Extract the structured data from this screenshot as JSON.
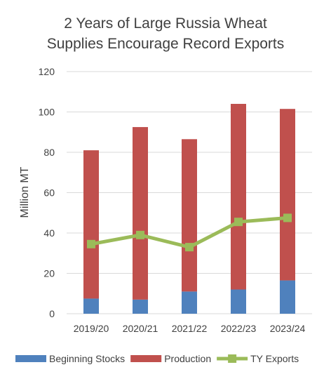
{
  "chart_data": {
    "type": "bar",
    "title_lines": [
      "2 Years of Large Russia Wheat",
      "Supplies Encourage Record Exports"
    ],
    "ylabel": "Million MT",
    "xlabel": "",
    "ylim": [
      0,
      120
    ],
    "yticks": [
      0,
      20,
      40,
      60,
      80,
      100,
      120
    ],
    "grid": true,
    "stacked": true,
    "legend_position": "bottom",
    "categories": [
      "2019/20",
      "2020/21",
      "2021/22",
      "2022/23",
      "2023/24"
    ],
    "series": [
      {
        "name": "Beginning Stocks",
        "type": "bar",
        "color": "#4f81bd",
        "values": [
          7.5,
          7.0,
          11.0,
          12.0,
          16.5
        ]
      },
      {
        "name": "Production",
        "type": "bar",
        "color": "#c0504d",
        "values": [
          73.5,
          85.5,
          75.5,
          92.0,
          85.0
        ]
      },
      {
        "name": "TY Exports",
        "type": "line",
        "color": "#9bbb59",
        "values": [
          34.5,
          39.0,
          33.0,
          45.5,
          47.5
        ]
      }
    ]
  }
}
